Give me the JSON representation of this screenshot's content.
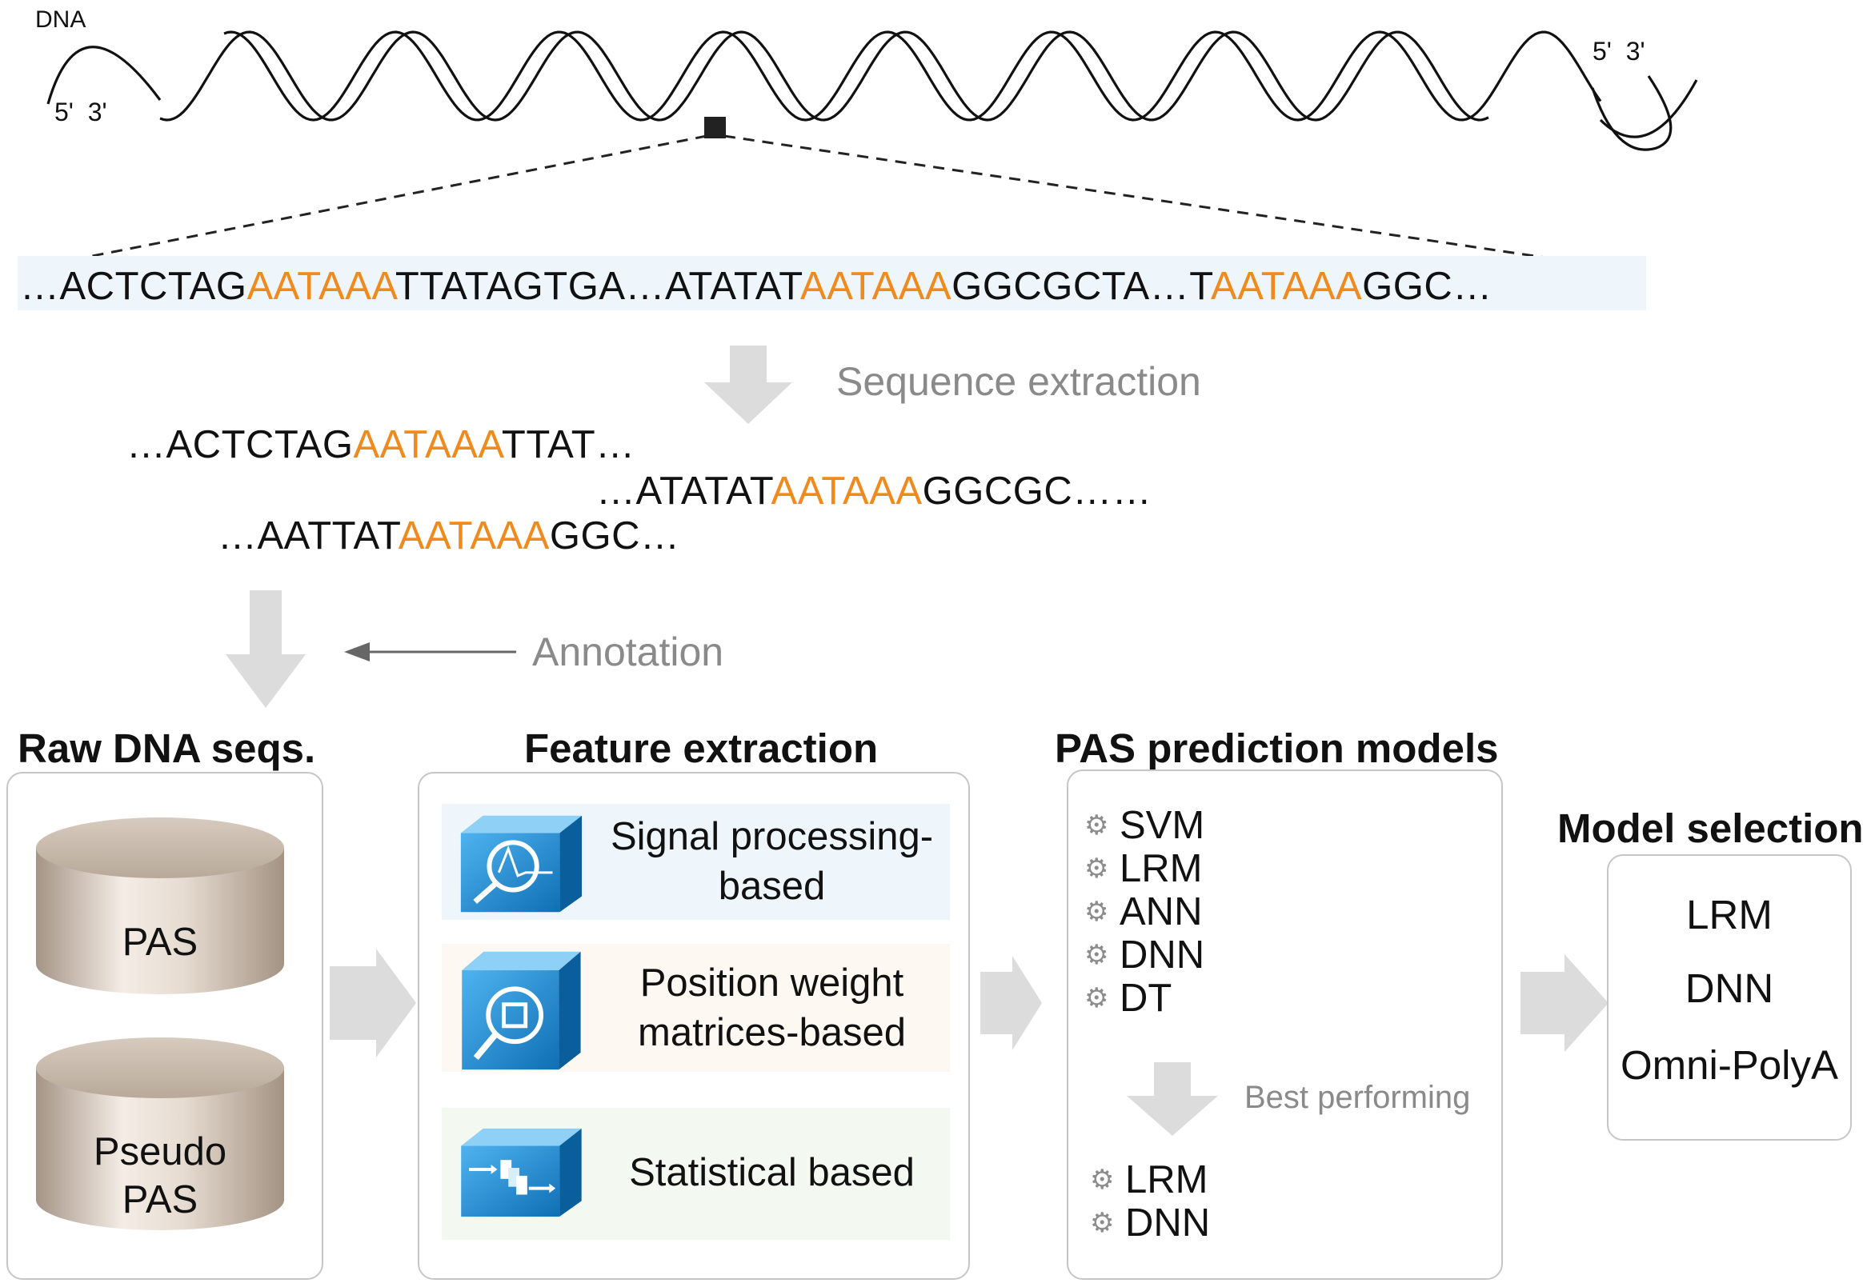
{
  "dna": {
    "label": "DNA",
    "left_end": "5'  3'",
    "right_end": "5'  3'"
  },
  "long_sequence": {
    "segments": [
      {
        "text": "…ACTCTAG",
        "highlight": false
      },
      {
        "text": "AATAAA",
        "highlight": true
      },
      {
        "text": "TTATAGTGA…ATATAT",
        "highlight": false
      },
      {
        "text": "AATAAA",
        "highlight": true
      },
      {
        "text": "GGCGCTA…T",
        "highlight": false
      },
      {
        "text": "AATAAA",
        "highlight": true
      },
      {
        "text": "GGC…",
        "highlight": false
      }
    ]
  },
  "steps": {
    "sequence_extraction": "Sequence extraction",
    "annotation": "Annotation",
    "best_performing": "Best performing"
  },
  "extracted": {
    "seq1": {
      "pre": "…ACTCTAG",
      "pas": "AATAAA",
      "post": "TTAT…"
    },
    "seq2": {
      "pre": "…ATATAT",
      "pas": "AATAAA",
      "post": "GGCGC……"
    },
    "seq3": {
      "pre": "…AATTAT",
      "pas": "AATAAA",
      "post": "GGC…"
    }
  },
  "raw_dna": {
    "title": "Raw DNA seqs.",
    "db1": "PAS",
    "db2_line1": "Pseudo",
    "db2_line2": "PAS"
  },
  "features": {
    "title": "Feature extraction",
    "items": [
      {
        "line1": "Signal processing-",
        "line2": "based",
        "icon": "signal-analysis-icon",
        "bg": "#eef6fb"
      },
      {
        "line1": "Position weight",
        "line2": "matrices-based",
        "icon": "magnifier-icon",
        "bg": "#fdf8f2"
      },
      {
        "line1": "Statistical based",
        "line2": "",
        "icon": "flow-blocks-icon",
        "bg": "#f3f9f1"
      }
    ]
  },
  "models": {
    "title": "PAS prediction models",
    "list": [
      "SVM",
      "LRM",
      "ANN",
      "DNN",
      "DT"
    ],
    "best": [
      "LRM",
      "DNN"
    ]
  },
  "selection": {
    "title": "Model selection",
    "items": [
      "LRM",
      "DNN",
      "Omni-PolyA"
    ]
  },
  "colors": {
    "highlight": "#f08a1c",
    "arrow": "#d9d9d9",
    "icon_blue": "#1c8ad6"
  }
}
